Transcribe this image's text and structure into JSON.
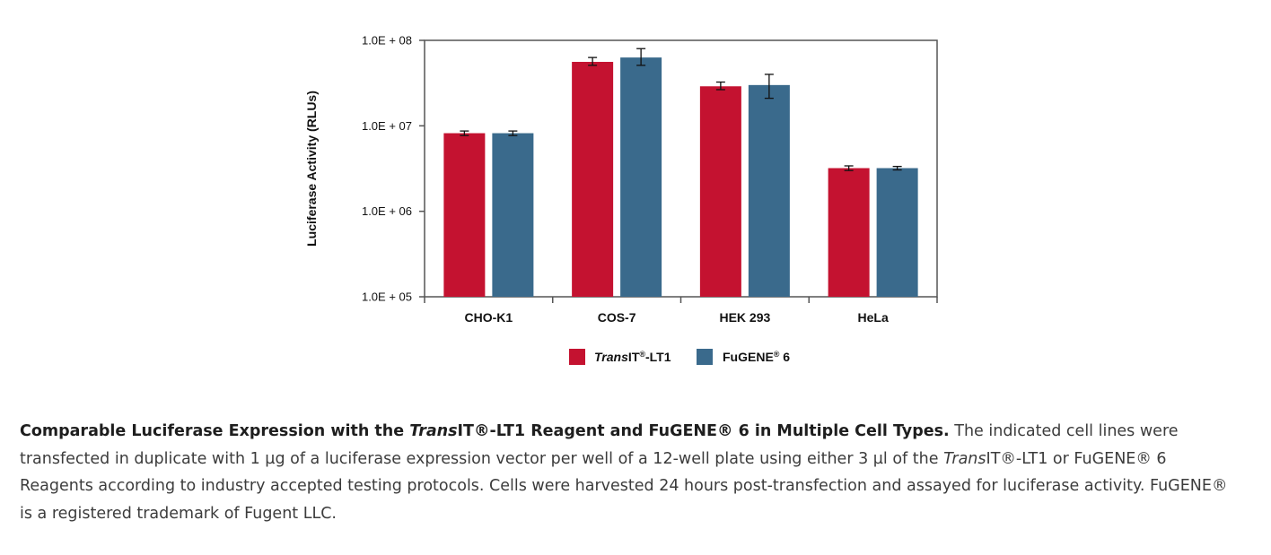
{
  "chart_data": {
    "type": "bar",
    "scale": "log",
    "ylabel": "Luciferase Activity (RLUs)",
    "ylim": [
      100000,
      100000000
    ],
    "yticks": [
      {
        "value": 100000,
        "label": "1.0E + 05"
      },
      {
        "value": 1000000,
        "label": "1.0E + 06"
      },
      {
        "value": 10000000,
        "label": "1.0E + 07"
      },
      {
        "value": 100000000,
        "label": "1.0E + 08"
      }
    ],
    "categories": [
      "CHO-K1",
      "COS-7",
      "HEK 293",
      "HeLa"
    ],
    "series": [
      {
        "name_italic": "Trans",
        "name_rest": "IT",
        "name_sup": "®",
        "name_suffix": "-LT1",
        "color": "#c41230",
        "values": [
          8200000,
          56000000,
          29000000,
          3200000
        ],
        "errors_low": [
          7700000,
          51000000,
          26500000,
          3000000
        ],
        "errors_high": [
          8700000,
          63000000,
          32500000,
          3400000
        ]
      },
      {
        "name_italic": "",
        "name_rest": "FuGENE",
        "name_sup": "®",
        "name_suffix": " 6",
        "color": "#3a6a8c",
        "values": [
          8200000,
          63000000,
          30000000,
          3200000
        ],
        "errors_low": [
          7700000,
          51000000,
          21000000,
          3050000
        ],
        "errors_high": [
          8700000,
          80000000,
          40000000,
          3350000
        ]
      }
    ],
    "legend_position": "bottom"
  },
  "caption": {
    "title_part1": "Comparable Luciferase Expression with the ",
    "title_italic": "Trans",
    "title_part2": "IT®-LT1 Reagent and FuGENE® 6 in Multiple Cell Types.",
    "body_part1": " The indicated cell lines were transfected in duplicate with 1 µg of a luciferase expression vector per well of a 12-well plate using either 3 µl of the ",
    "body_italic": "Trans",
    "body_part2": "IT®-LT1 or FuGENE® 6 Reagents according to industry accepted testing protocols. Cells were harvested 24 hours post-transfection and assayed for luciferase activity. FuGENE® is a registered trademark of Fugent LLC."
  }
}
